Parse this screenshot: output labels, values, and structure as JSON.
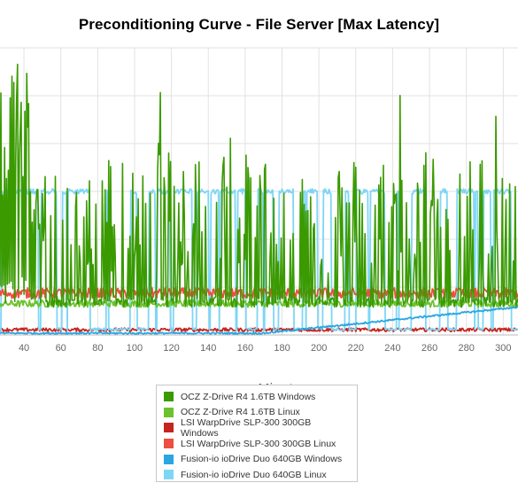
{
  "chart_data": {
    "type": "line",
    "title": "Preconditioning Curve - File Server [Max Latency]",
    "xlabel": "Minutes",
    "ylabel": "",
    "xlim": [
      27,
      308
    ],
    "ylim": [
      0,
      330
    ],
    "x_ticks": [
      "40",
      "60",
      "80",
      "100",
      "120",
      "140",
      "160",
      "180",
      "200",
      "220",
      "240",
      "260",
      "280",
      "300"
    ],
    "x_tick_values": [
      40,
      60,
      80,
      100,
      120,
      140,
      160,
      180,
      200,
      220,
      240,
      260,
      280,
      300
    ],
    "grid": true,
    "legend_position": "bottom",
    "series": [
      {
        "name": "OCZ Z-Drive R4 1.6TB Windows",
        "color": "#3a9a00",
        "pattern": "spiky",
        "base": 38,
        "early_peak": 330,
        "spike_range": [
          150,
          210
        ],
        "tall_spike_x": [
          36,
          38,
          42,
          113,
          114,
          152,
          244,
          296
        ]
      },
      {
        "name": "OCZ Z-Drive R4 1.6TB Linux",
        "color": "#6cc22e",
        "pattern": "flat",
        "level": 36,
        "spread": 4
      },
      {
        "name": "LSI WarpDrive SLP-300 300GB Windows",
        "color": "#c6241e",
        "pattern": "flat",
        "level": 6,
        "spread": 2
      },
      {
        "name": "LSI WarpDrive SLP-300 300GB Linux",
        "color": "#ec4e40",
        "pattern": "flat",
        "level": 48,
        "spread": 6
      },
      {
        "name": "Fusion-io ioDrive Duo 640GB Windows",
        "color": "#2aa6e2",
        "pattern": "ramp",
        "start": 2,
        "end": 32,
        "ramp_start_x": 170
      },
      {
        "name": "Fusion-io ioDrive Duo 640GB Linux",
        "color": "#7ed6f6",
        "pattern": "square",
        "low": 5,
        "high": 168
      }
    ]
  }
}
